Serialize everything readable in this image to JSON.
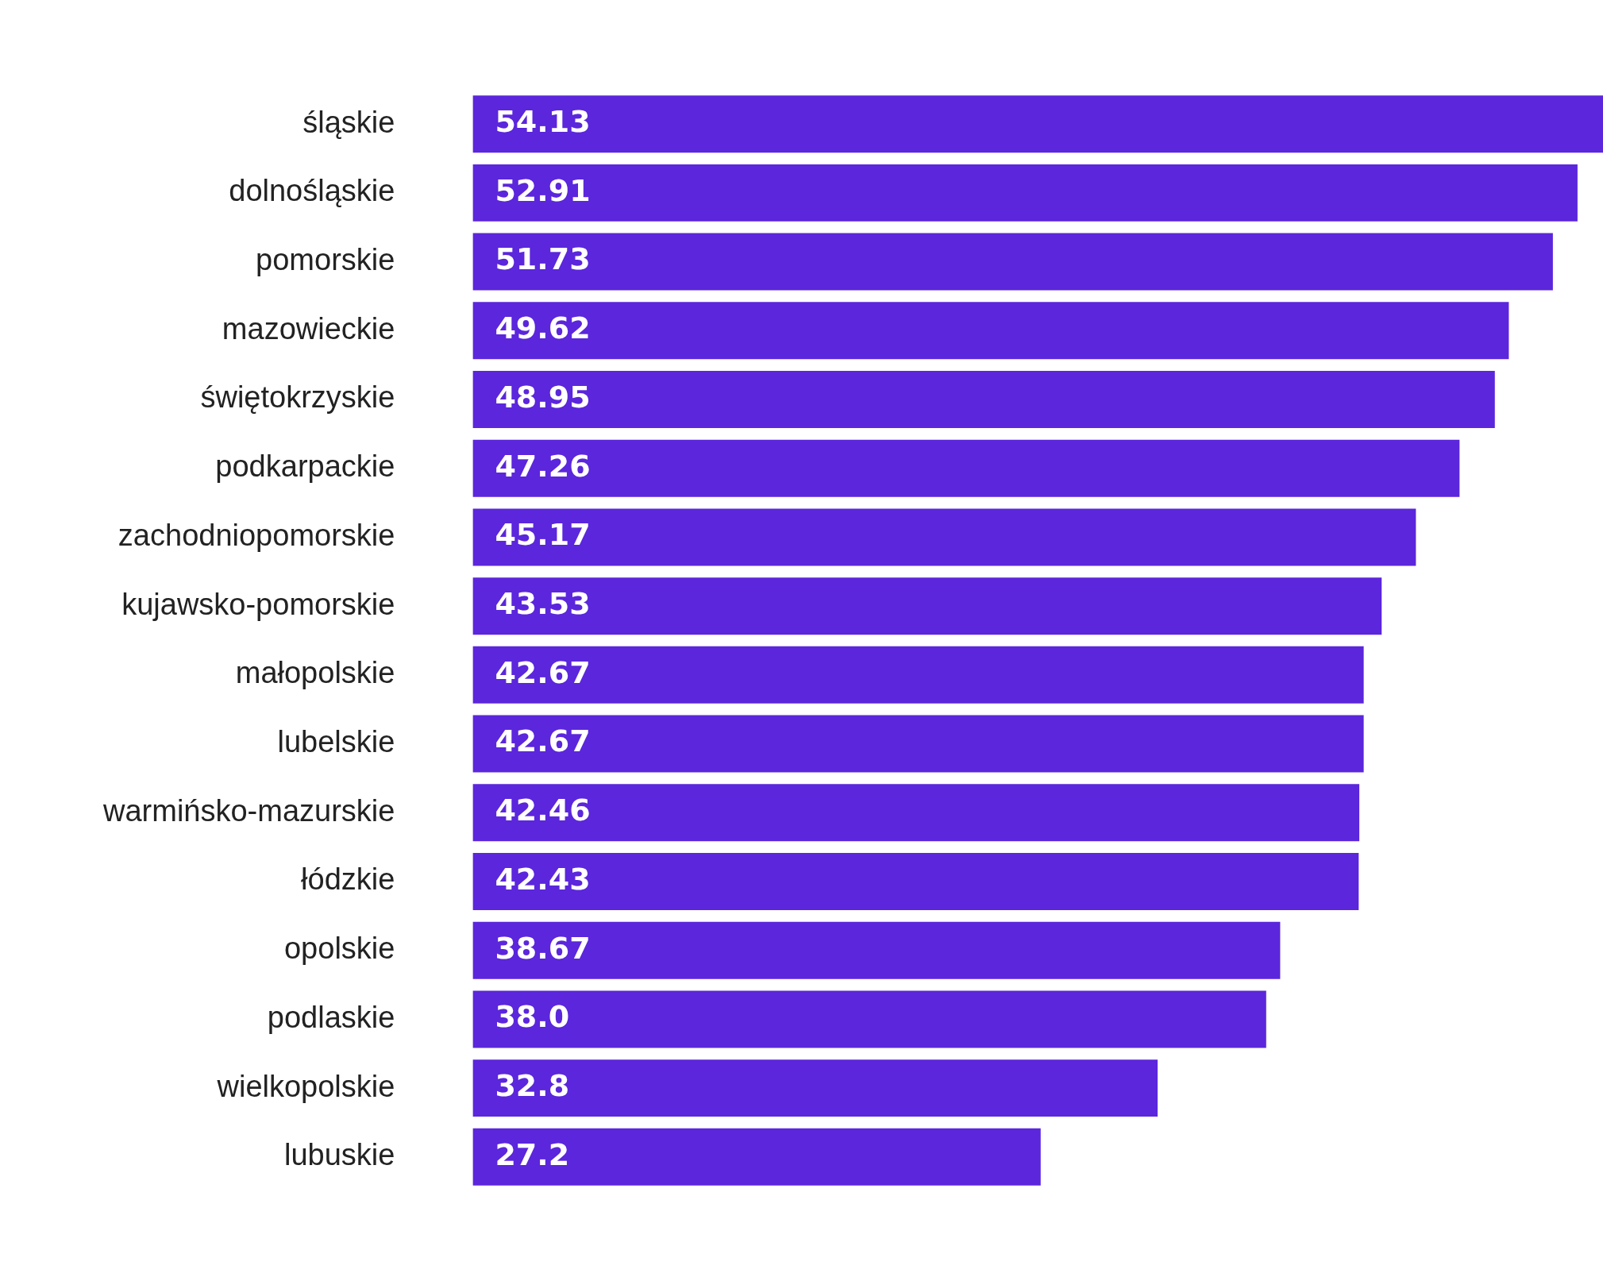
{
  "chart_data": {
    "type": "bar",
    "orientation": "horizontal",
    "color": "#5b26dc",
    "categories": [
      "śląskie",
      "dolnośląskie",
      "pomorskie",
      "mazowieckie",
      "świętokrzyskie",
      "podkarpackie",
      "zachodniopomorskie",
      "kujawsko-pomorskie",
      "małopolskie",
      "lubelskie",
      "warmińsko-mazurskie",
      "łódzkie",
      "opolskie",
      "podlaskie",
      "wielkopolskie",
      "lubuskie"
    ],
    "values": [
      54.13,
      52.91,
      51.73,
      49.62,
      48.95,
      47.26,
      45.17,
      43.53,
      42.67,
      42.67,
      42.46,
      42.43,
      38.67,
      38.0,
      32.8,
      27.2
    ],
    "value_labels": [
      "54.13",
      "52.91",
      "51.73",
      "49.62",
      "48.95",
      "47.26",
      "45.17",
      "43.53",
      "42.67",
      "42.67",
      "42.46",
      "42.43",
      "38.67",
      "38.0",
      "32.8",
      "27.2"
    ]
  }
}
